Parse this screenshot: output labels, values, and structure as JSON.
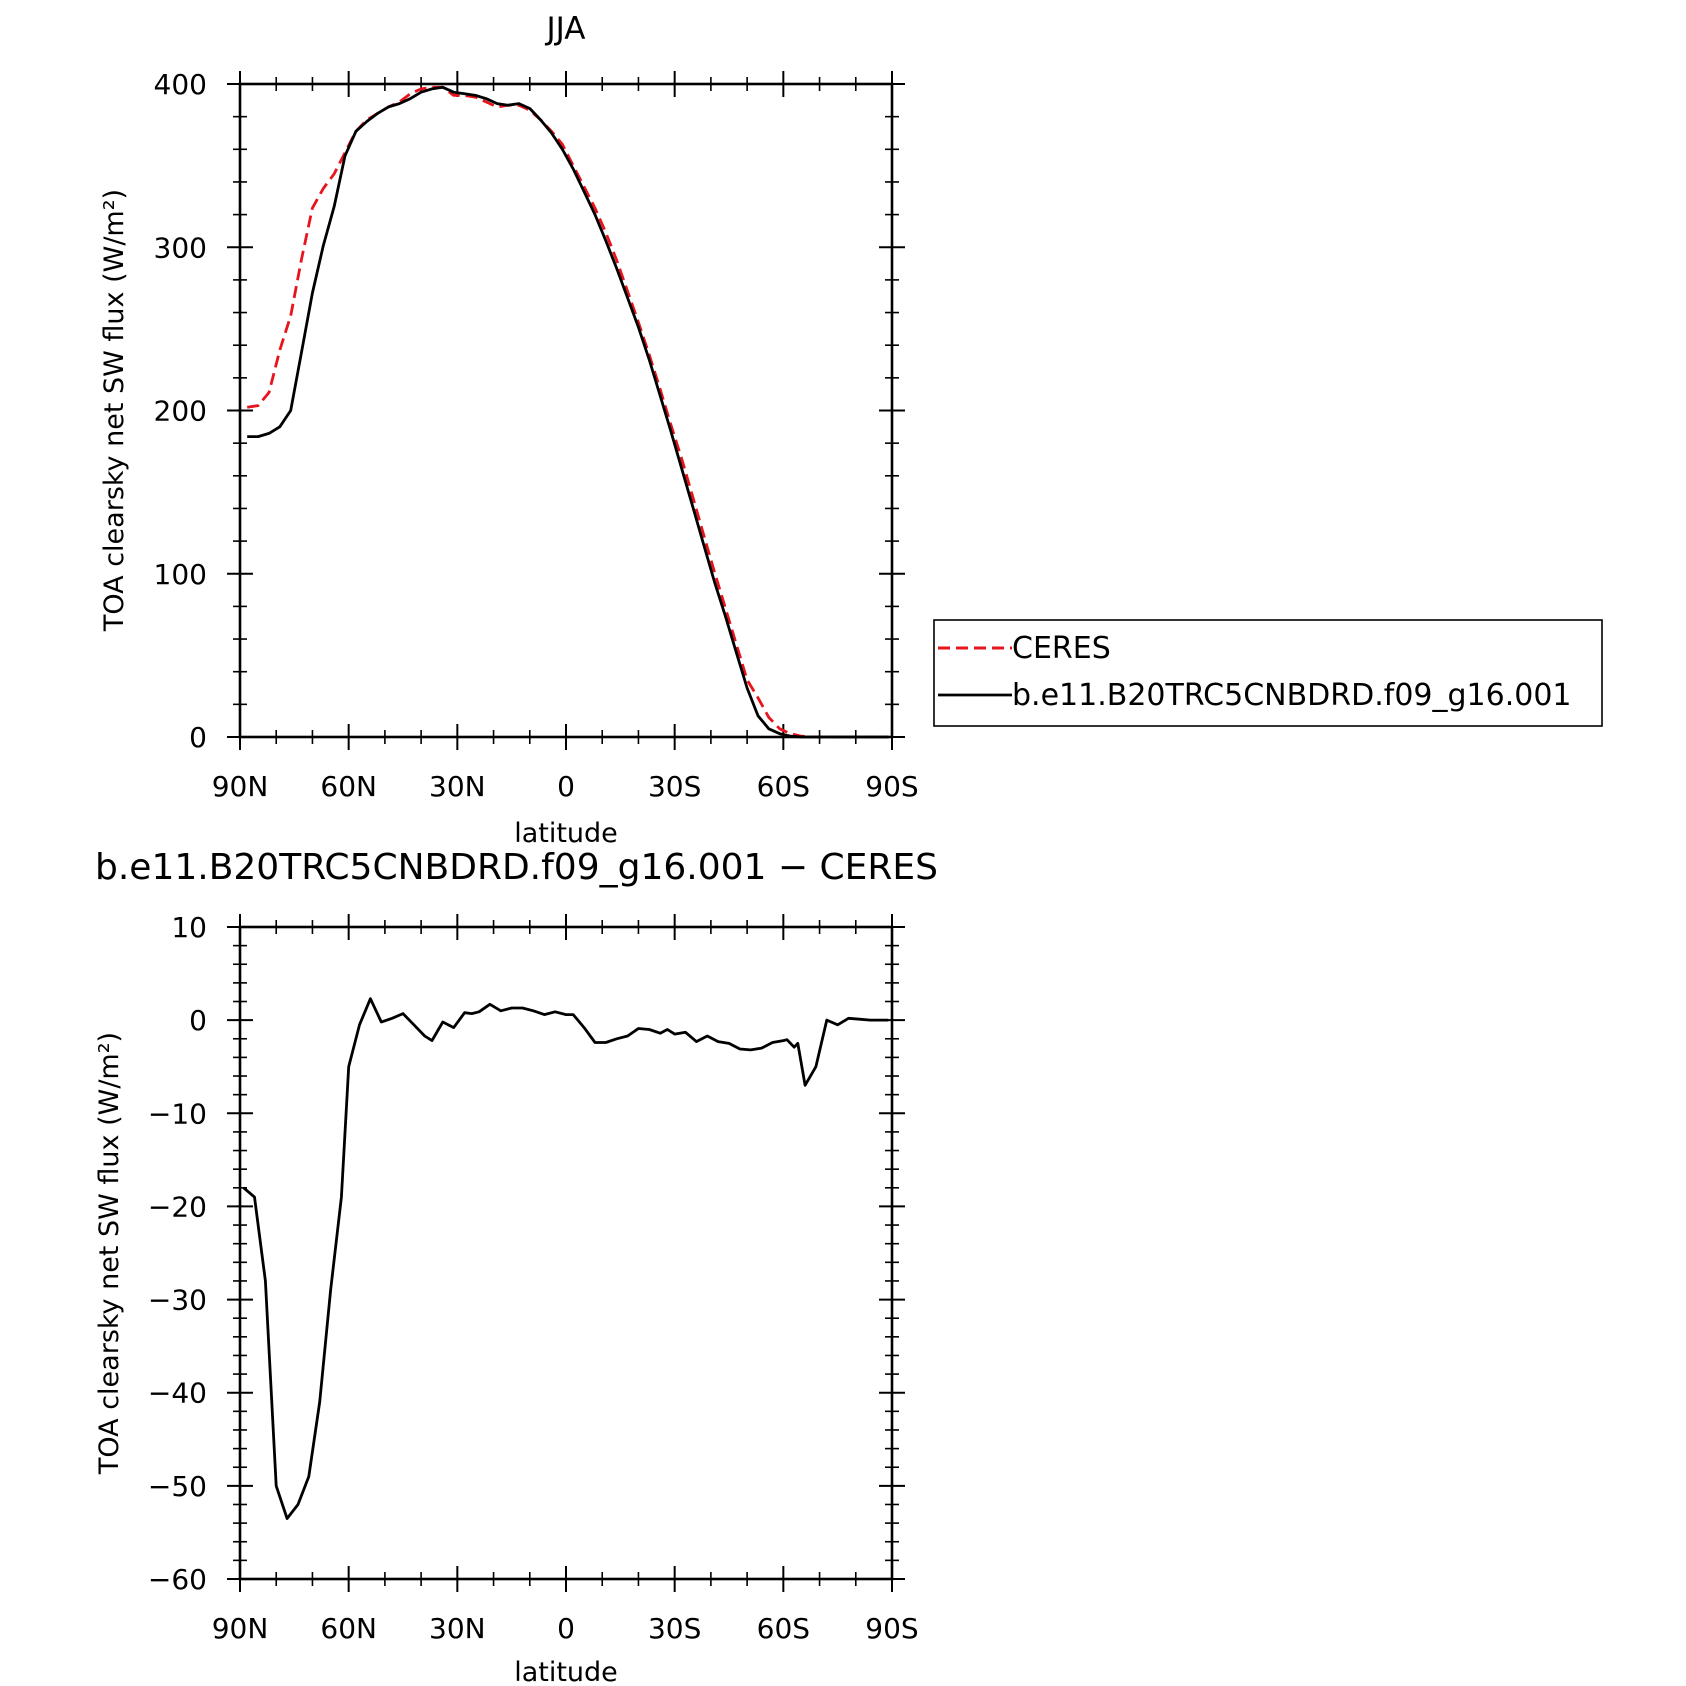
{
  "chart_data": [
    {
      "type": "line",
      "title": "JJA",
      "xlabel": "latitude",
      "ylabel": "TOA clearsky net SW flux (W/m²)",
      "xlim": [
        90,
        -90
      ],
      "ylim": [
        0,
        400
      ],
      "x_ticks": [
        {
          "value": 90,
          "label": "90N"
        },
        {
          "value": 60,
          "label": "60N"
        },
        {
          "value": 30,
          "label": "30N"
        },
        {
          "value": 0,
          "label": "0"
        },
        {
          "value": -30,
          "label": "30S"
        },
        {
          "value": -60,
          "label": "60S"
        },
        {
          "value": -90,
          "label": "90S"
        }
      ],
      "y_ticks": [
        {
          "value": 0,
          "label": "0"
        },
        {
          "value": 100,
          "label": "100"
        },
        {
          "value": 200,
          "label": "200"
        },
        {
          "value": 300,
          "label": "300"
        },
        {
          "value": 400,
          "label": "400"
        }
      ],
      "legend": {
        "placement": "right"
      },
      "series": [
        {
          "name": "CERES",
          "color": "#e8141b",
          "dash": "dashed",
          "x": [
            88,
            85,
            82,
            79,
            76,
            73,
            70,
            67,
            64,
            61,
            58,
            55,
            52,
            49,
            46,
            43,
            40,
            37,
            34,
            31,
            28,
            25,
            22,
            19,
            16,
            13,
            10,
            7,
            4,
            1,
            -2,
            -5,
            -8,
            -11,
            -14,
            -17,
            -20,
            -23,
            -26,
            -29,
            -32,
            -35,
            -38,
            -41,
            -44,
            -47,
            -50,
            -53,
            -56,
            -59,
            -62,
            -65,
            -68,
            -71,
            -74,
            -77,
            -80,
            -83,
            -86,
            -89
          ],
          "values": [
            202,
            203,
            211,
            237,
            258,
            293,
            324,
            336,
            345,
            358,
            371,
            378,
            382,
            386,
            389,
            394,
            397,
            398,
            398,
            393,
            393,
            392,
            389,
            386,
            387,
            387,
            384,
            378,
            371,
            363,
            350,
            337,
            324,
            309,
            292,
            273,
            254,
            234,
            213,
            191,
            170,
            147,
            124,
            101,
            79,
            57,
            35,
            24,
            12,
            5,
            2,
            0.5,
            0,
            0,
            0,
            0,
            0,
            0,
            0,
            0
          ]
        },
        {
          "name": "b.e11.B20TRC5CNBDRD.f09_g16.001",
          "color": "#000000",
          "dash": "solid",
          "x": [
            88,
            85,
            82,
            79,
            76,
            73,
            70,
            67,
            64,
            61,
            58,
            55,
            52,
            49,
            46,
            43,
            40,
            37,
            34,
            31,
            28,
            25,
            22,
            19,
            16,
            13,
            10,
            7,
            4,
            1,
            -2,
            -5,
            -8,
            -11,
            -14,
            -17,
            -20,
            -23,
            -26,
            -29,
            -32,
            -35,
            -38,
            -41,
            -44,
            -47,
            -50,
            -53,
            -56,
            -59,
            -62,
            -65,
            -68,
            -71,
            -74,
            -77,
            -80,
            -83,
            -86,
            -89
          ],
          "values": [
            184,
            184,
            186,
            190,
            200,
            236,
            272,
            301,
            325,
            356,
            371,
            377,
            382,
            386,
            388,
            391,
            395,
            397,
            398,
            395,
            394,
            393,
            391,
            388,
            387,
            388,
            385,
            378,
            370,
            360,
            348,
            334,
            320,
            304,
            287,
            269,
            251,
            231,
            209,
            187,
            164,
            141,
            118,
            95,
            74,
            52,
            30,
            13,
            5,
            2,
            0.5,
            0,
            0,
            0,
            0,
            0,
            0,
            0,
            0,
            0
          ]
        }
      ]
    },
    {
      "type": "line",
      "title": "b.e11.B20TRC5CNBDRD.f09_g16.001 − CERES",
      "xlabel": "latitude",
      "ylabel": "TOA clearsky net SW flux (W/m²)",
      "xlim": [
        90,
        -90
      ],
      "ylim": [
        -60,
        10
      ],
      "x_ticks": [
        {
          "value": 90,
          "label": "90N"
        },
        {
          "value": 60,
          "label": "60N"
        },
        {
          "value": 30,
          "label": "30N"
        },
        {
          "value": 0,
          "label": "0"
        },
        {
          "value": -30,
          "label": "30S"
        },
        {
          "value": -60,
          "label": "60S"
        },
        {
          "value": -90,
          "label": "90S"
        }
      ],
      "y_ticks": [
        {
          "value": 10,
          "label": "10"
        },
        {
          "value": 0,
          "label": "0"
        },
        {
          "value": -10,
          "label": "−10"
        },
        {
          "value": -20,
          "label": "−20"
        },
        {
          "value": -30,
          "label": "−30"
        },
        {
          "value": -40,
          "label": "−40"
        },
        {
          "value": -50,
          "label": "−50"
        },
        {
          "value": -60,
          "label": "−60"
        }
      ],
      "series": [
        {
          "color": "#000000",
          "dash": "solid",
          "x": [
            89,
            86,
            83,
            80,
            77,
            74,
            71,
            68,
            65,
            62,
            60,
            57,
            54,
            51,
            48,
            45,
            42,
            39,
            37,
            34,
            31,
            28,
            26,
            24,
            21,
            18,
            15,
            12,
            9,
            6,
            3,
            0,
            -2,
            -5,
            -8,
            -11,
            -14,
            -17,
            -20,
            -23,
            -26,
            -28,
            -30,
            -33,
            -36,
            -39,
            -42,
            -45,
            -48,
            -51,
            -54,
            -57,
            -60,
            -61,
            -63,
            -64,
            -66,
            -69,
            -72,
            -75,
            -78,
            -81,
            -84,
            -87,
            -89
          ],
          "values": [
            -18,
            -19,
            -28,
            -50,
            -53.5,
            -52,
            -49,
            -41,
            -29,
            -19,
            -5,
            -0.5,
            2.3,
            -0.2,
            0.2,
            0.7,
            -0.5,
            -1.7,
            -2.2,
            -0.2,
            -0.8,
            0.8,
            0.7,
            0.9,
            1.7,
            1.0,
            1.3,
            1.3,
            1.0,
            0.6,
            0.9,
            0.6,
            0.6,
            -0.8,
            -2.4,
            -2.4,
            -2.0,
            -1.7,
            -0.9,
            -1.0,
            -1.4,
            -1.0,
            -1.5,
            -1.3,
            -2.3,
            -1.7,
            -2.3,
            -2.5,
            -3.1,
            -3.2,
            -3.0,
            -2.4,
            -2.2,
            -2.1,
            -2.9,
            -2.5,
            -7.0,
            -5.0,
            0,
            -0.5,
            0.2,
            0.1,
            0,
            0,
            0
          ]
        }
      ]
    }
  ]
}
